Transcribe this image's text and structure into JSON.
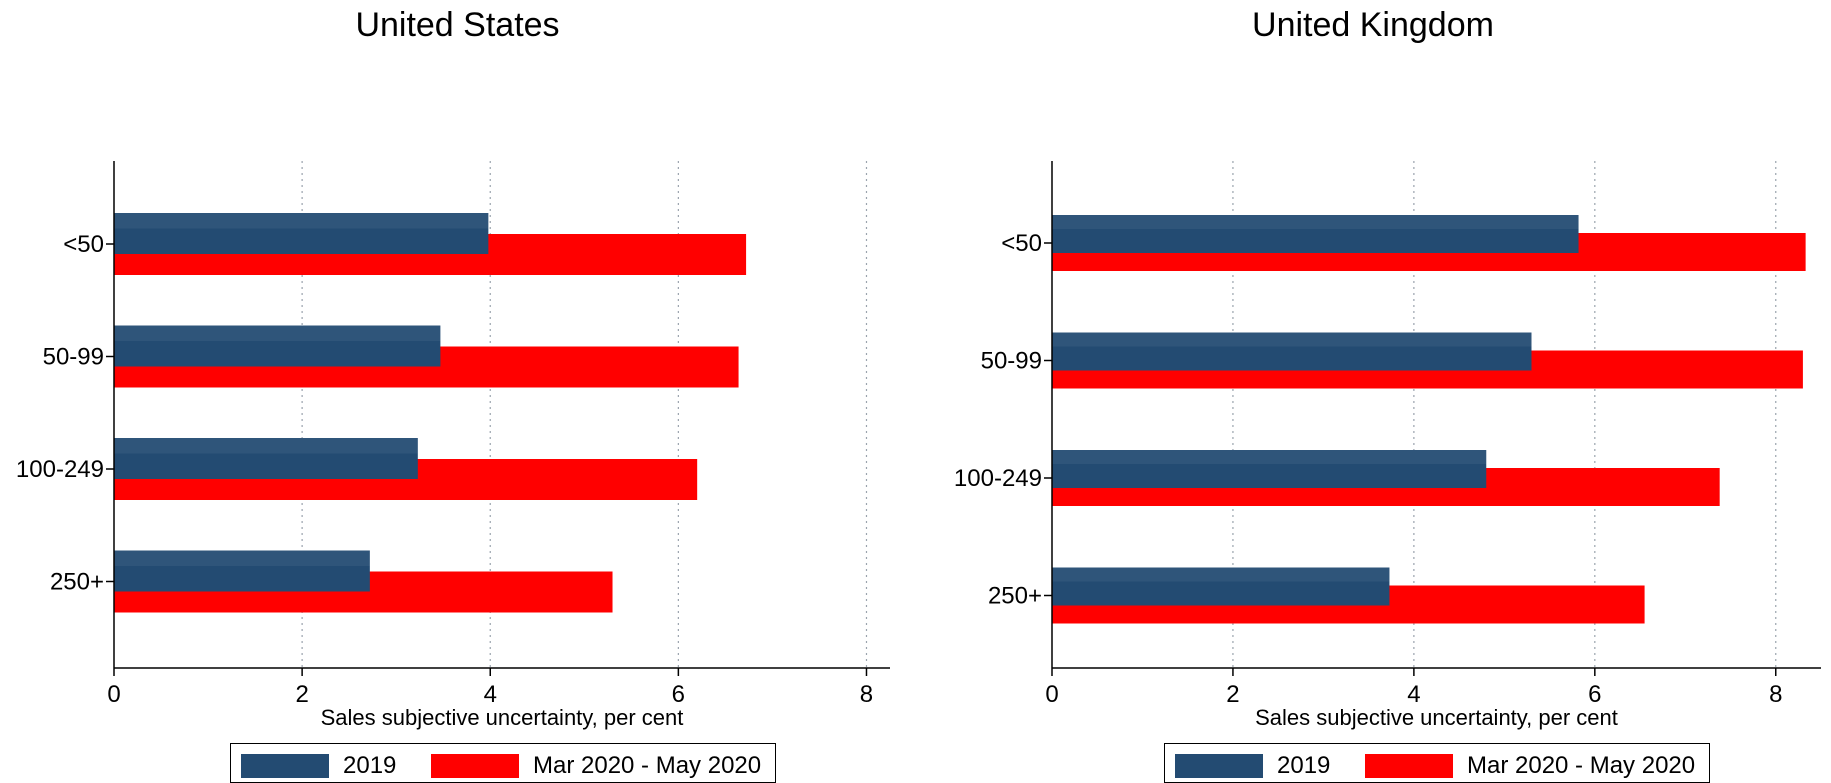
{
  "chart_data": [
    {
      "type": "bar",
      "orientation": "horizontal",
      "title": "United States",
      "categories": [
        "<50",
        "50-99",
        "100-249",
        "250+"
      ],
      "series": [
        {
          "name": "2019",
          "values": [
            3.98,
            3.47,
            3.23,
            2.72
          ],
          "color": "#234b72"
        },
        {
          "name": "Mar 2020 - May 2020",
          "values": [
            6.72,
            6.64,
            6.2,
            5.3
          ],
          "color": "#ff0000"
        }
      ],
      "xlabel": "Sales subjective uncertainty, per cent",
      "ylabel": "",
      "xlim": [
        0,
        8.25
      ],
      "xticks": [
        "0",
        "2",
        "4",
        "6",
        "8"
      ],
      "grid": "vertical dotted",
      "legend_position": "bottom"
    },
    {
      "type": "bar",
      "orientation": "horizontal",
      "title": "United Kingdom",
      "categories": [
        "<50",
        "50-99",
        "100-249",
        "250+"
      ],
      "series": [
        {
          "name": "2019",
          "values": [
            5.82,
            5.3,
            4.8,
            3.73
          ],
          "color": "#234b72"
        },
        {
          "name": "Mar 2020 - May 2020",
          "values": [
            8.33,
            8.3,
            7.38,
            6.55
          ],
          "color": "#ff0000"
        }
      ],
      "xlabel": "Sales subjective uncertainty, per cent",
      "ylabel": "",
      "xlim": [
        0,
        8.5
      ],
      "xticks": [
        "0",
        "2",
        "4",
        "6",
        "8"
      ],
      "grid": "vertical dotted",
      "legend_position": "bottom"
    }
  ]
}
